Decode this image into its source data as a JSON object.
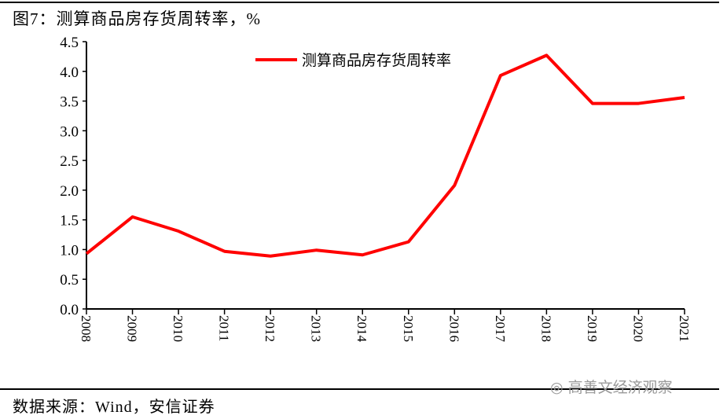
{
  "title": "图7：测算商品房存货周转率，%",
  "source": "数据来源：Wind，安信证券",
  "watermark": "高善文经济观察",
  "chart_data": {
    "type": "line",
    "title": "图7：测算商品房存货周转率，%",
    "xlabel": "",
    "ylabel": "",
    "categories": [
      "2008",
      "2009",
      "2010",
      "2011",
      "2012",
      "2013",
      "2014",
      "2015",
      "2016",
      "2017",
      "2018",
      "2019",
      "2020",
      "2021"
    ],
    "series": [
      {
        "name": "测算商品房存货周转率",
        "color": "#ff0000",
        "values": [
          0.93,
          1.55,
          1.31,
          0.97,
          0.89,
          0.99,
          0.91,
          1.13,
          2.08,
          3.93,
          4.27,
          3.46,
          3.46,
          3.56
        ]
      }
    ],
    "ylim": [
      0,
      4.5
    ],
    "yticks": [
      "0.0",
      "0.5",
      "1.0",
      "1.5",
      "2.0",
      "2.5",
      "3.0",
      "3.5",
      "4.0",
      "4.5"
    ],
    "grid": false,
    "legend": "top-center"
  }
}
